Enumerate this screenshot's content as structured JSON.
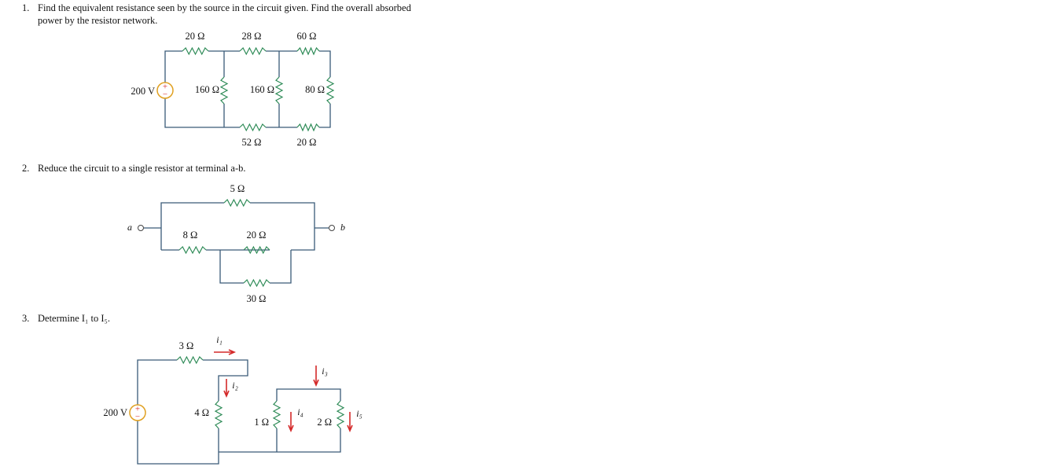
{
  "problems": [
    {
      "number": "1.",
      "lines": [
        "Find the equivalent resistance seen by the source in the circuit given. Find the overall absorbed",
        "power by the resistor network."
      ],
      "circuit": {
        "source": "200 V",
        "polarity": [
          "+",
          "−"
        ],
        "resistors": [
          "20 Ω",
          "28 Ω",
          "60 Ω",
          "160 Ω",
          "160 Ω",
          "80 Ω",
          "52 Ω",
          "20 Ω"
        ]
      }
    },
    {
      "number": "2.",
      "lines": [
        "Reduce the circuit to a single resistor at terminal a-b."
      ],
      "circuit": {
        "terminals": [
          "a",
          "b"
        ],
        "resistors": [
          "5 Ω",
          "8 Ω",
          "20 Ω",
          "30 Ω"
        ]
      }
    },
    {
      "number": "3.",
      "lines": [
        "Determine I₁ to I₅."
      ],
      "circuit": {
        "source": "200 V",
        "polarity": [
          "+",
          "−"
        ],
        "resistors": [
          "3 Ω",
          "4 Ω",
          "1 Ω",
          "2 Ω"
        ],
        "currents": [
          "i₁",
          "i₂",
          "i₃",
          "i₄",
          "i₅"
        ]
      }
    }
  ]
}
